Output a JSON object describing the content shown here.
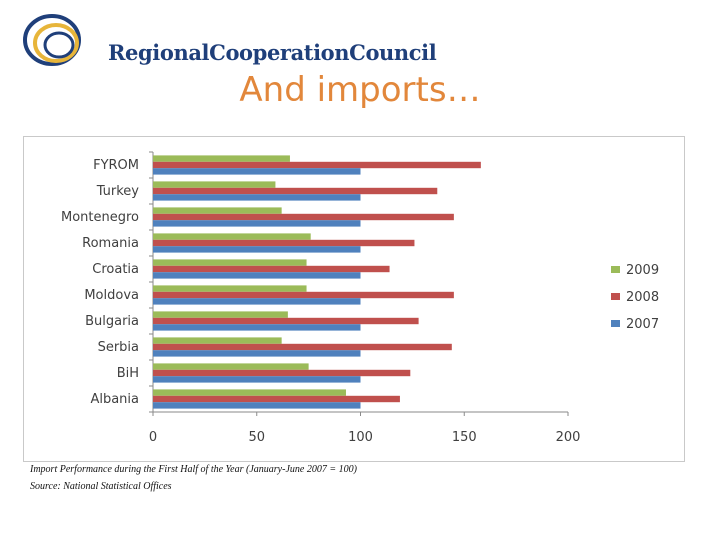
{
  "header": {
    "logo_text": "RegionalCooperationCouncil",
    "slide_title": "And imports…"
  },
  "colors": {
    "logo_blue": "#1f3f7a",
    "logo_gold": "#e7b53a",
    "title_orange": "#e2873b",
    "series_2009": "#9bbb59",
    "series_2008": "#c0504d",
    "series_2007": "#4f81bd"
  },
  "chart_data": {
    "type": "bar",
    "orientation": "horizontal",
    "categories": [
      "FYROM",
      "Turkey",
      "Montenegro",
      "Romania",
      "Croatia",
      "Moldova",
      "Bulgaria",
      "Serbia",
      "BiH",
      "Albania"
    ],
    "series": [
      {
        "name": "2009",
        "values": [
          66,
          59,
          62,
          76,
          74,
          74,
          65,
          62,
          75,
          93
        ]
      },
      {
        "name": "2008",
        "values": [
          158,
          137,
          145,
          126,
          114,
          145,
          128,
          144,
          124,
          119
        ]
      },
      {
        "name": "2007",
        "values": [
          100,
          100,
          100,
          100,
          100,
          100,
          100,
          100,
          100,
          100
        ]
      }
    ],
    "xlim": [
      0,
      200
    ],
    "xticks": [
      "0",
      "50",
      "100",
      "150",
      "200"
    ],
    "legend_position": "right",
    "grid": false
  },
  "footer": {
    "caption": "Import Performance during the First Half of the Year (January-June 2007 = 100)",
    "source": "Source: National Statistical Offices"
  }
}
